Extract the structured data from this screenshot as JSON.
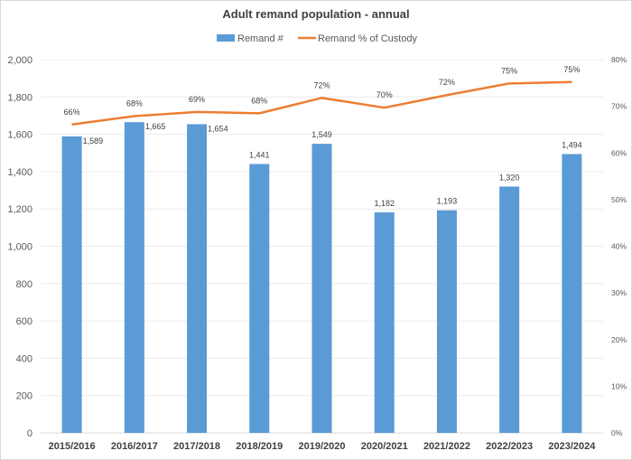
{
  "chart_data": {
    "type": "bar+line",
    "title": "Adult remand population - annual",
    "categories": [
      "2015/2016",
      "2016/2017",
      "2017/2018",
      "2018/2019",
      "2019/2020",
      "2020/2021",
      "2021/2022",
      "2022/2023",
      "2023/2024"
    ],
    "series": [
      {
        "name": "Remand #",
        "type": "bar",
        "axis": "left",
        "color": "#5b9bd5",
        "values": [
          1589,
          1665,
          1654,
          1441,
          1549,
          1182,
          1193,
          1320,
          1494
        ],
        "labels": [
          "1,589",
          "1,665",
          "1,654",
          "1,441",
          "1,549",
          "1,182",
          "1,193",
          "1,320",
          "1,494"
        ]
      },
      {
        "name": "Remand % of Custody",
        "type": "line",
        "axis": "right",
        "color": "#ed7d31",
        "values": [
          66.1,
          67.9,
          68.8,
          68.5,
          71.8,
          69.7,
          72.4,
          74.9,
          75.2
        ],
        "labels": [
          "66%",
          "68%",
          "69%",
          "68%",
          "72%",
          "70%",
          "72%",
          "75%",
          "75%"
        ]
      }
    ],
    "ylim_left": [
      0,
      2000
    ],
    "yticks_left": [
      "0",
      "200",
      "400",
      "600",
      "800",
      "1,000",
      "1,200",
      "1,400",
      "1,600",
      "1,800",
      "2,000"
    ],
    "ylim_right": [
      0,
      80
    ],
    "yticks_right": [
      "0%",
      "10%",
      "20%",
      "30%",
      "40%",
      "50%",
      "60%",
      "70%",
      "80%"
    ],
    "grid": true,
    "legend": "top"
  }
}
